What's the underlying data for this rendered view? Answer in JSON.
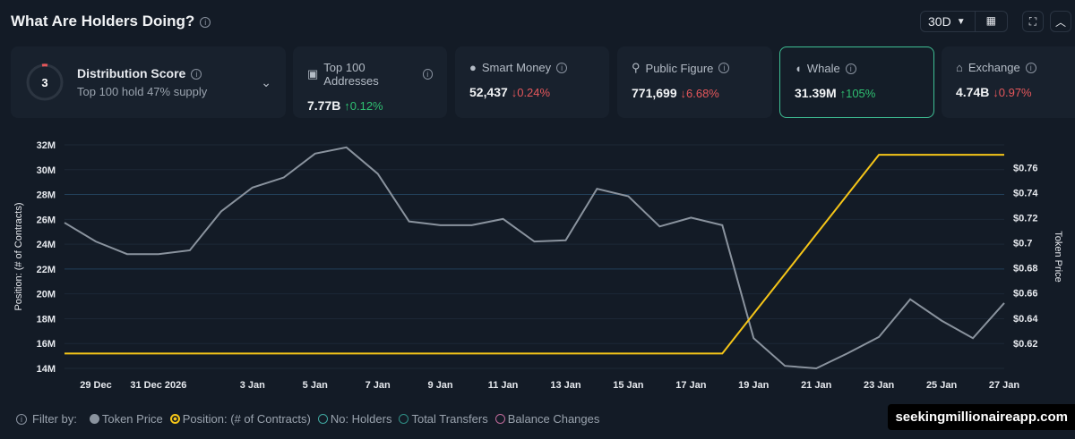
{
  "header": {
    "title": "What Are Holders Doing?",
    "range": "30D"
  },
  "distribution": {
    "score": "3",
    "title": "Distribution Score",
    "subtitle": "Top 100 hold 47% supply"
  },
  "cards": [
    {
      "label": "Top 100 Addresses",
      "value": "7.77B",
      "change": "0.12%",
      "dir": "up",
      "icon": "money-icon"
    },
    {
      "label": "Smart Money",
      "value": "52,437",
      "change": "0.24%",
      "dir": "down",
      "icon": "sunglasses-icon"
    },
    {
      "label": "Public Figure",
      "value": "771,699",
      "change": "6.68%",
      "dir": "down",
      "icon": "podium-icon"
    },
    {
      "label": "Whale",
      "value": "31.39M",
      "change": "105%",
      "dir": "up",
      "icon": "whale-icon",
      "selected": true
    },
    {
      "label": "Exchange",
      "value": "4.74B",
      "change": "0.97%",
      "dir": "down",
      "icon": "bank-icon"
    }
  ],
  "legend": {
    "filter_label": "Filter by:",
    "items": [
      {
        "label": "Token Price",
        "color": "#8a939e",
        "active": true
      },
      {
        "label": "Position: (# of Contracts)",
        "color": "#f5c518",
        "active": true
      },
      {
        "label": "No: Holders",
        "color": "#3fa7a0",
        "active": false
      },
      {
        "label": "Total Transfers",
        "color": "#2f8f86",
        "active": false
      },
      {
        "label": "Balance Changes",
        "color": "#c06a9a",
        "active": false
      }
    ]
  },
  "watermark": "seekingmillionaireapp.com",
  "chart_data": {
    "type": "line",
    "dates": [
      "28 Dec",
      "29 Dec",
      "30 Dec",
      "31 Dec 2026",
      "1 Jan",
      "2 Jan",
      "3 Jan",
      "4 Jan",
      "5 Jan",
      "6 Jan",
      "7 Jan",
      "8 Jan",
      "9 Jan",
      "10 Jan",
      "11 Jan",
      "12 Jan",
      "13 Jan",
      "14 Jan",
      "15 Jan",
      "16 Jan",
      "17 Jan",
      "18 Jan",
      "19 Jan",
      "20 Jan",
      "21 Jan",
      "22 Jan",
      "23 Jan",
      "24 Jan",
      "25 Jan",
      "26 Jan",
      "27 Jan"
    ],
    "x_tick_labels": [
      "29 Dec",
      "31 Dec 2026",
      "3 Jan",
      "5 Jan",
      "7 Jan",
      "9 Jan",
      "11 Jan",
      "13 Jan",
      "15 Jan",
      "17 Jan",
      "19 Jan",
      "21 Jan",
      "23 Jan",
      "25 Jan",
      "27 Jan"
    ],
    "x_tick_index": [
      1,
      3,
      6,
      8,
      10,
      12,
      14,
      16,
      18,
      20,
      22,
      24,
      26,
      28,
      30
    ],
    "ylabel": "Position: (# of Contracts)",
    "ylabel_right": "Token Price",
    "ylim": [
      14,
      32
    ],
    "ylim_right": [
      0.6,
      0.778
    ],
    "y_ticks": [
      "14M",
      "16M",
      "18M",
      "20M",
      "22M",
      "24M",
      "26M",
      "28M",
      "30M",
      "32M"
    ],
    "y_ticks_right": [
      "$0.62",
      "$0.64",
      "$0.66",
      "$0.68",
      "$0.7",
      "$0.72",
      "$0.74",
      "$0.76"
    ],
    "series": [
      {
        "name": "Token Price",
        "axis": "right",
        "color": "#8a939e",
        "values": [
          0.716,
          0.701,
          0.691,
          0.691,
          0.694,
          0.725,
          0.744,
          0.752,
          0.771,
          0.776,
          0.755,
          0.717,
          0.714,
          0.714,
          0.719,
          0.701,
          0.702,
          0.743,
          0.737,
          0.713,
          0.72,
          0.714,
          0.624,
          0.602,
          0.6,
          0.612,
          0.625,
          0.655,
          0.638,
          0.624,
          0.652
        ]
      },
      {
        "name": "Position: (# of Contracts)",
        "axis": "left",
        "color": "#f5c518",
        "values": [
          15.2,
          15.2,
          15.2,
          15.2,
          15.2,
          15.2,
          15.2,
          15.2,
          15.2,
          15.2,
          15.2,
          15.2,
          15.2,
          15.2,
          15.2,
          15.2,
          15.2,
          15.2,
          15.2,
          15.2,
          15.2,
          15.2,
          18.4,
          21.6,
          24.8,
          28.0,
          31.2,
          31.2,
          31.2,
          31.2,
          31.2
        ]
      }
    ]
  }
}
